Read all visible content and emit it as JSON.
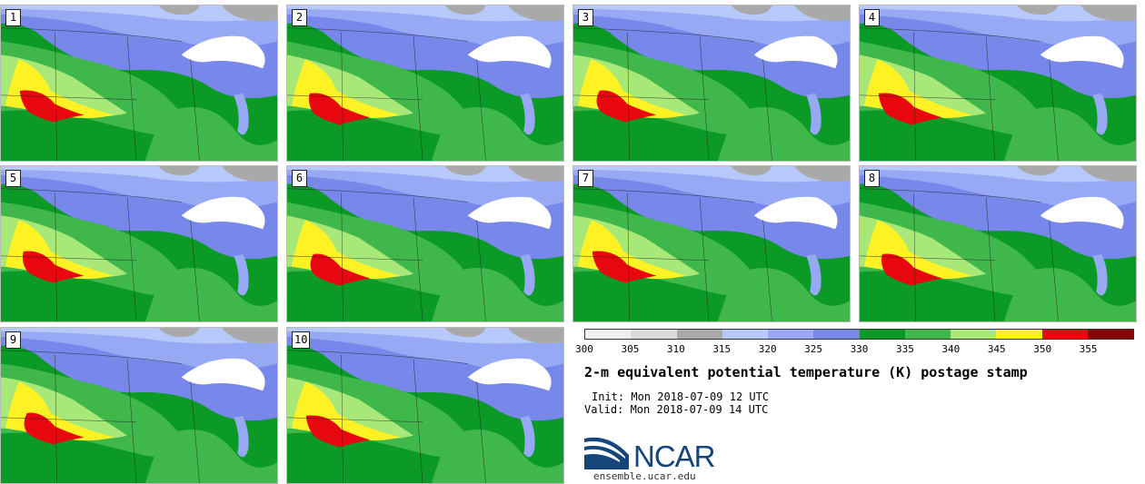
{
  "stamps": [
    {
      "label": "1"
    },
    {
      "label": "2"
    },
    {
      "label": "3"
    },
    {
      "label": "4"
    },
    {
      "label": "5"
    },
    {
      "label": "6"
    },
    {
      "label": "7"
    },
    {
      "label": "8"
    },
    {
      "label": "9"
    },
    {
      "label": "10"
    }
  ],
  "colorbar": {
    "ticks": [
      "300",
      "305",
      "310",
      "315",
      "320",
      "325",
      "330",
      "335",
      "340",
      "345",
      "350",
      "355"
    ],
    "colors": [
      "#efefef",
      "#dcdcdc",
      "#a9a9a9",
      "#b7c8fa",
      "#97a9f5",
      "#7787ea",
      "#0b9a26",
      "#3fb74a",
      "#a8e878",
      "#fff224",
      "#e8070e",
      "#8a0606"
    ]
  },
  "title": "2-m equivalent potential temperature (K) postage stamp",
  "init": "Init: Mon 2018-07-09 12 UTC",
  "valid": "Valid: Mon 2018-07-09 14 UTC",
  "logo": {
    "name": "ncar-logo",
    "text": "NCAR",
    "site": "ensemble.ucar.edu"
  }
}
